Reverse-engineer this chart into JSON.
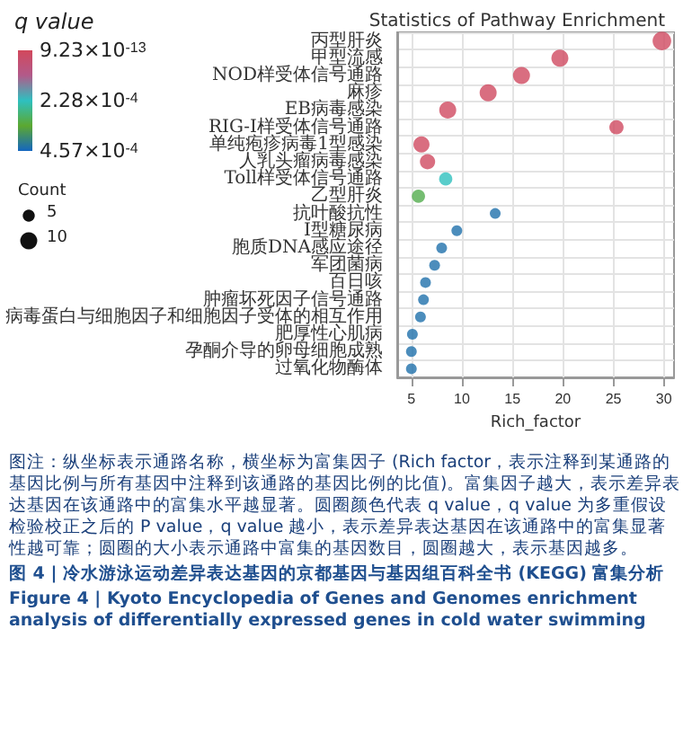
{
  "chart_data": {
    "type": "bubble",
    "title": "Statistics of Pathway Enrichment",
    "xlabel": "Rich_factor",
    "clabel": "q value",
    "legend_title": "Count",
    "categories": [
      "丙型肝炎",
      "甲型流感",
      "NOD样受体信号通路",
      "麻疹",
      "EB病毒感染",
      "RIG-I样受体信号通路",
      "单纯疱疹病毒1型感染",
      "人乳头瘤病毒感染",
      "Toll样受体信号通路",
      "乙型肝炎",
      "抗叶酸抗性",
      "I型糖尿病",
      "胞质DNA感应途径",
      "军团菌病",
      "百日咳",
      "肿瘤坏死因子信号通路",
      "病毒蛋白与细胞因子和细胞因子受体的相互作用",
      "肥厚性心肌病",
      "孕酮介导的卵母细胞成熟",
      "过氧化物酶体"
    ],
    "values": [
      29.8,
      19.7,
      15.9,
      12.6,
      8.6,
      25.3,
      6.0,
      6.6,
      8.4,
      5.7,
      13.3,
      9.5,
      8.0,
      7.3,
      6.4,
      6.2,
      5.9,
      5.1,
      5.0,
      5.0
    ],
    "sizes": [
      12,
      10,
      10,
      10,
      10,
      7,
      9,
      8,
      6,
      6,
      4,
      4,
      4,
      4,
      4,
      4,
      4,
      4,
      4,
      4
    ],
    "size_legend": [
      5,
      10
    ],
    "cvalues": [
      1e-05,
      1e-05,
      1e-05,
      1e-05,
      1e-05,
      1e-05,
      1e-05,
      1e-05,
      0.00023,
      0.00032,
      0.00044,
      0.00044,
      0.00044,
      0.00044,
      0.00044,
      0.00044,
      0.00044,
      0.00044,
      0.00044,
      0.00044
    ],
    "clim": [
      9.23e-13,
      0.000457
    ],
    "cticks": [
      {
        "value": 9.23e-13,
        "label": "9.23×10$^{-13}$"
      },
      {
        "value": 0.000228,
        "label": "2.28×10$^{-4}$"
      },
      {
        "value": 0.000457,
        "label": "4.57×10$^{-4}$"
      }
    ],
    "orientation": "horizontal",
    "xlim": [
      3.6,
      31
    ],
    "xticks": [
      5,
      10,
      15,
      20,
      25,
      30
    ],
    "grid": true,
    "annotations": [
      "图注：纵坐标表示通路名称，横坐标为富集因子 (Rich factor，表示注释到某通路的基因比例与所有基因中注释到该通路的基因比例的比值)。富集因子越大，表示差异表达基因在该通路中的富集水平越显著。圆圈颜色代表 q value，q value 为多重假设检验校正之后的 P value，q value 越小，表示差异表达基因在该通路中的富集显著性越可靠；圆圈的大小表示通路中富集的基因数目，圆圈越大，表示基因越多。",
      "图 4 | 冷水游泳运动差异表达基因的京都基因与基因组百科全书 (KEGG) 富集分析",
      "Figure 4 | Kyoto Encyclopedia of Genes and Genomes enrichment analysis of differentially expressed genes in cold water swimming"
    ]
  }
}
